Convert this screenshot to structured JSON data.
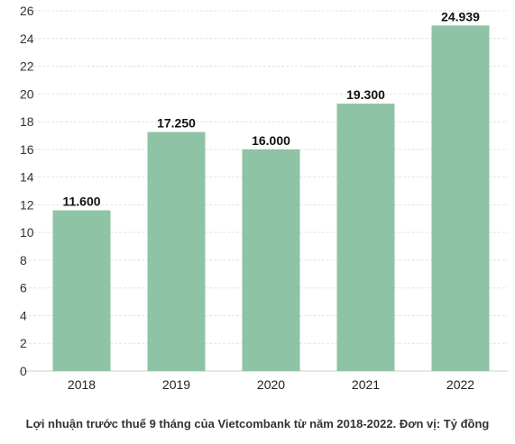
{
  "chart_data": {
    "type": "bar",
    "categories": [
      "2018",
      "2019",
      "2020",
      "2021",
      "2022"
    ],
    "values": [
      11.6,
      17.25,
      16.0,
      19.3,
      24.939
    ],
    "value_labels": [
      "11.600",
      "17.250",
      "16.000",
      "19.300",
      "24.939"
    ],
    "ylim": [
      0,
      26
    ],
    "yticks": [
      0,
      2,
      4,
      6,
      8,
      10,
      12,
      14,
      16,
      18,
      20,
      22,
      24,
      26
    ],
    "grid": true,
    "bar_color": "#8fc3a5",
    "caption": "Lợi nhuận trước thuế 9 tháng của Vietcombank từ năm 2018-2022. Đơn vị: Tỷ đồng"
  }
}
